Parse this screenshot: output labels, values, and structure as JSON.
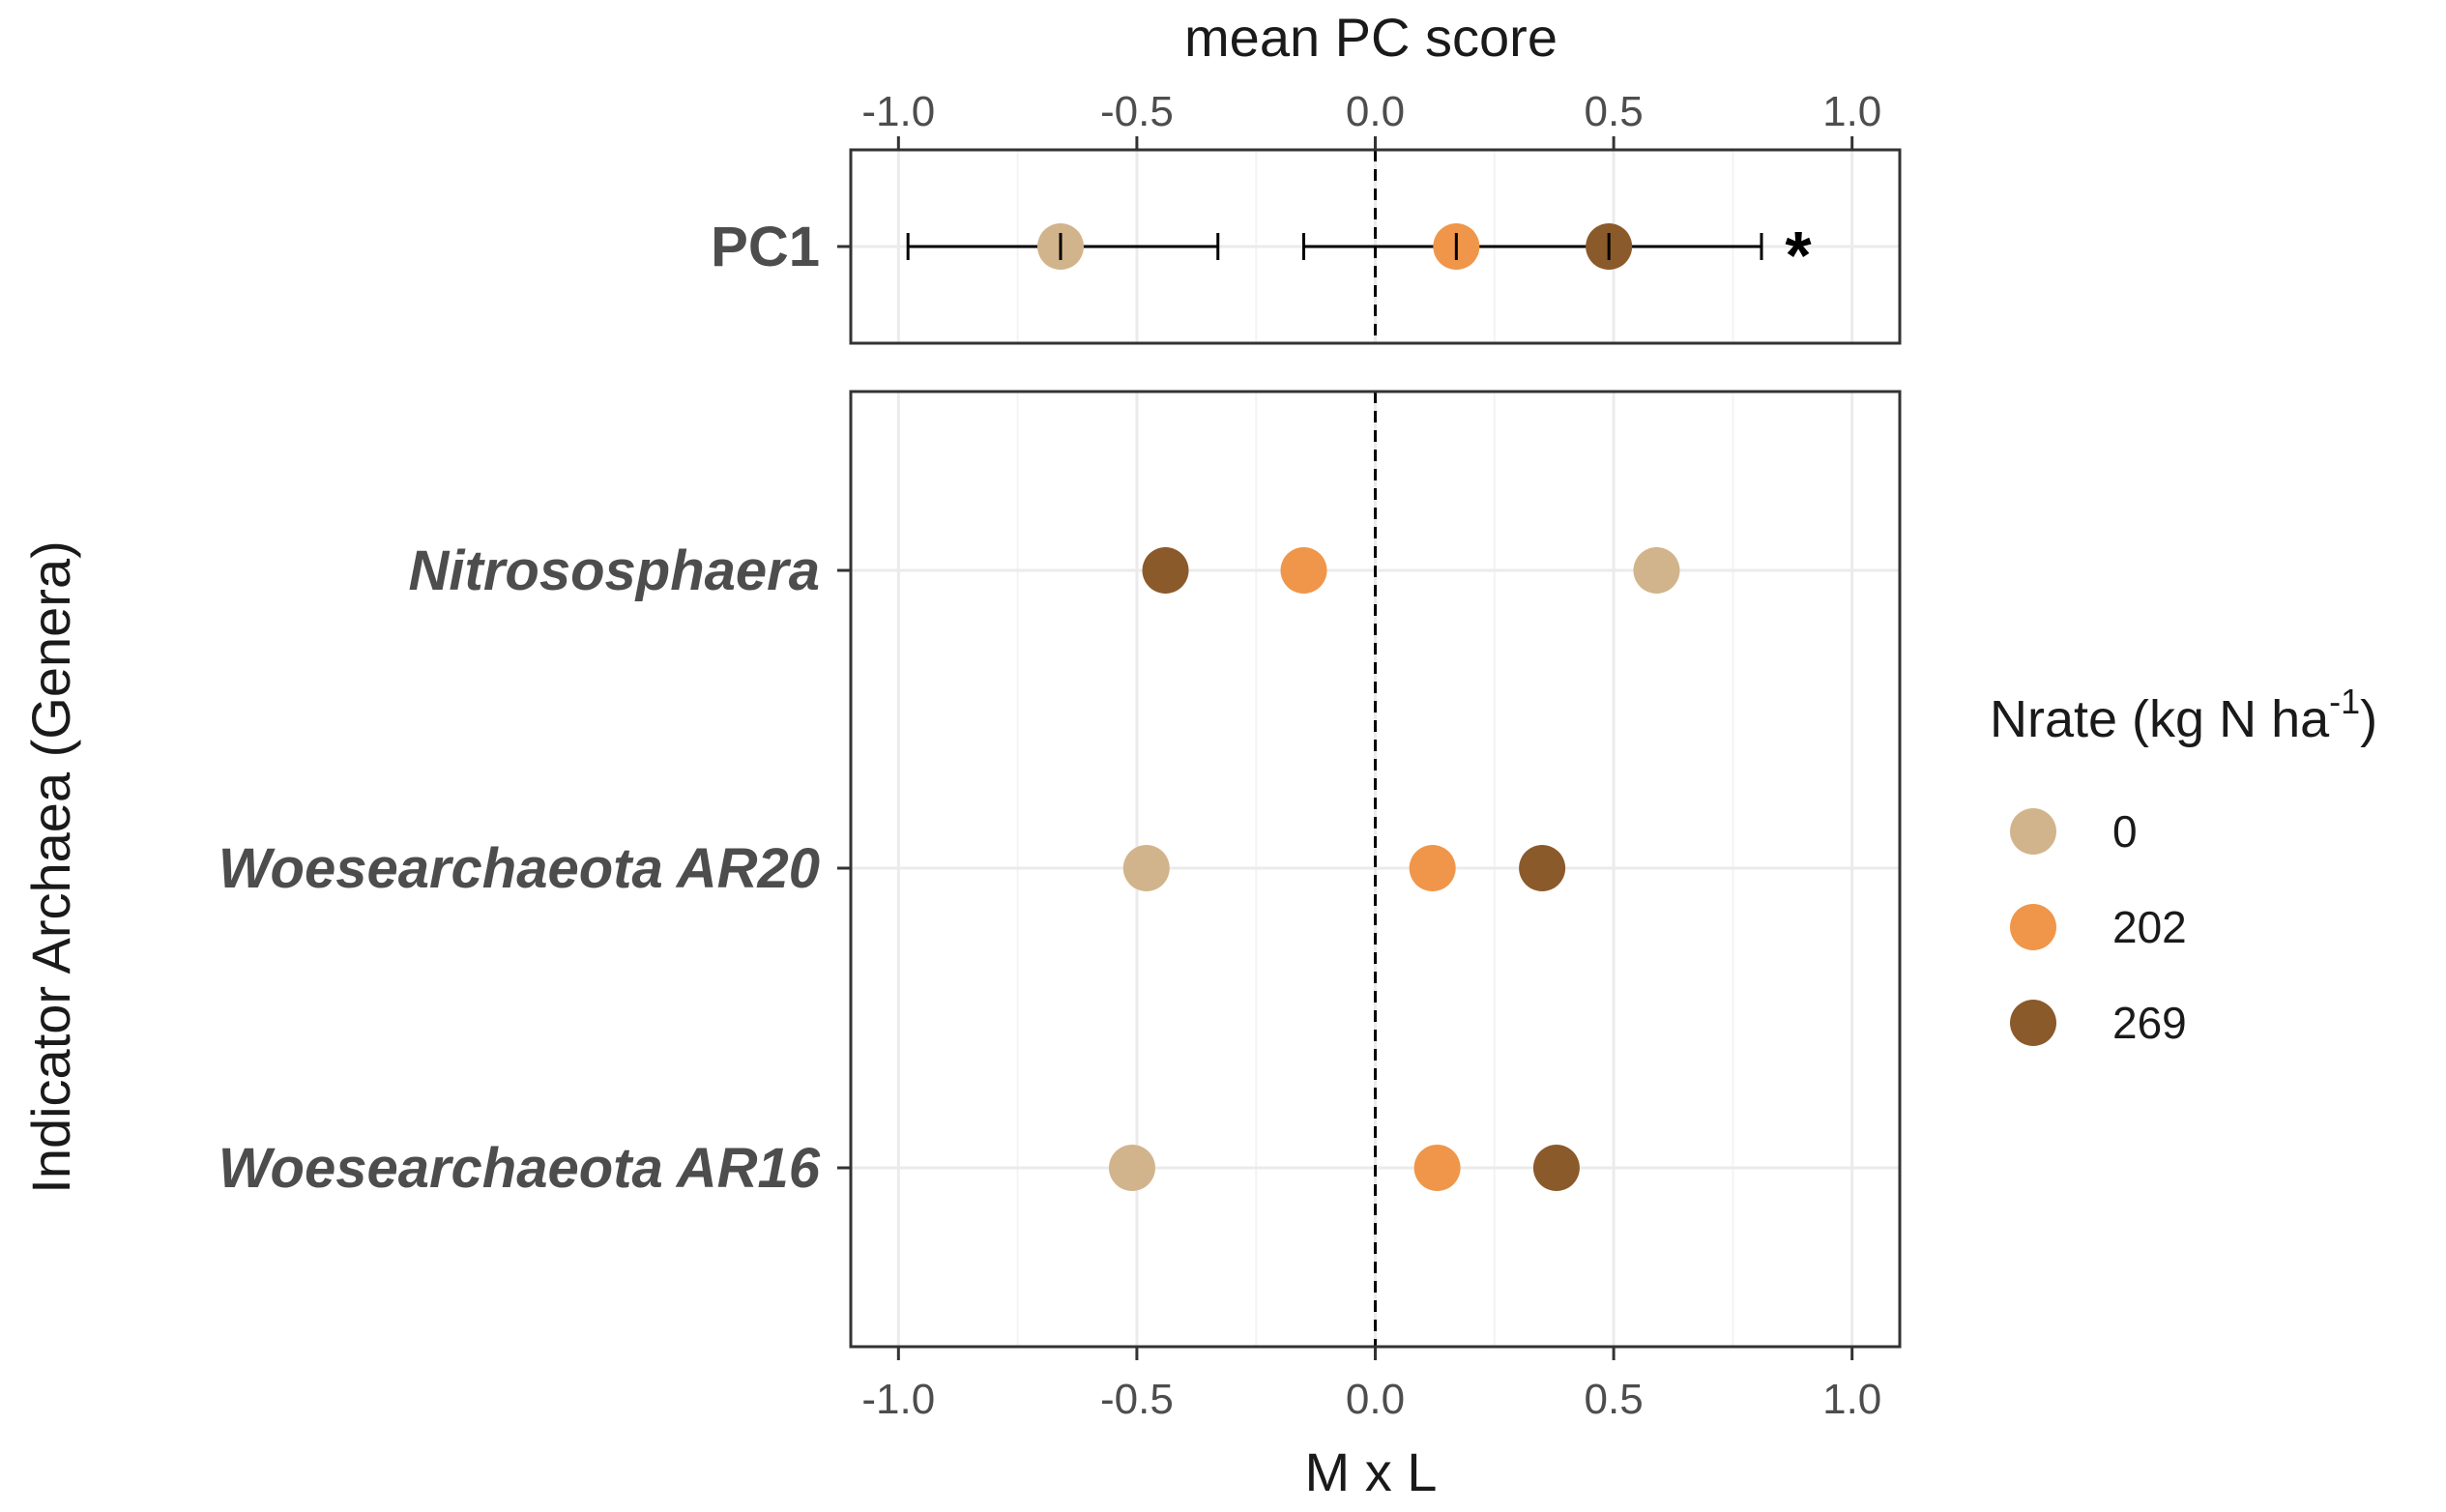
{
  "chart_data": [
    {
      "type": "scatter",
      "panel": "top",
      "xlabel": "mean PC score",
      "xlim": [
        -1.1,
        1.1
      ],
      "xticks": [
        "-1.0",
        "-0.5",
        "0.0",
        "0.5",
        "1.0"
      ],
      "xtick_values": [
        -1.0,
        -0.5,
        0.0,
        0.5,
        1.0
      ],
      "categories": [
        "PC1"
      ],
      "reference_line": 0,
      "annotation": "*",
      "series": [
        {
          "name": "0",
          "values": [
            -0.66
          ],
          "err_low": [
            -0.98
          ],
          "err_high": [
            -0.33
          ]
        },
        {
          "name": "202",
          "values": [
            0.17
          ],
          "err_low": [
            -0.15
          ],
          "err_high": [
            0.49
          ]
        },
        {
          "name": "269",
          "values": [
            0.49
          ],
          "err_low": [
            0.17
          ],
          "err_high": [
            0.81
          ]
        }
      ]
    },
    {
      "type": "scatter",
      "panel": "bottom",
      "xlabel": "M x L",
      "ylabel": "Indicator Archaea (Genera)",
      "xlim": [
        -1.1,
        1.1
      ],
      "xticks": [
        "-1.0",
        "-0.5",
        "0.0",
        "0.5",
        "1.0"
      ],
      "xtick_values": [
        -1.0,
        -0.5,
        0.0,
        0.5,
        1.0
      ],
      "categories": [
        "Nitrososphaera",
        "Woesearchaeota AR20",
        "Woesearchaeota AR16"
      ],
      "reference_line": 0,
      "series": [
        {
          "name": "0",
          "values": [
            0.59,
            -0.48,
            -0.51
          ]
        },
        {
          "name": "202",
          "values": [
            -0.15,
            0.12,
            0.13
          ]
        },
        {
          "name": "269",
          "values": [
            -0.44,
            0.35,
            0.38
          ]
        }
      ]
    }
  ],
  "legend": {
    "title_prefix": "Nrate (kg N ha",
    "title_sup": "-1",
    "title_suffix": ")",
    "entries": [
      {
        "label": "0",
        "color": "#D2B48C"
      },
      {
        "label": "202",
        "color": "#F0964A"
      },
      {
        "label": "269",
        "color": "#8B5A2B"
      }
    ]
  }
}
